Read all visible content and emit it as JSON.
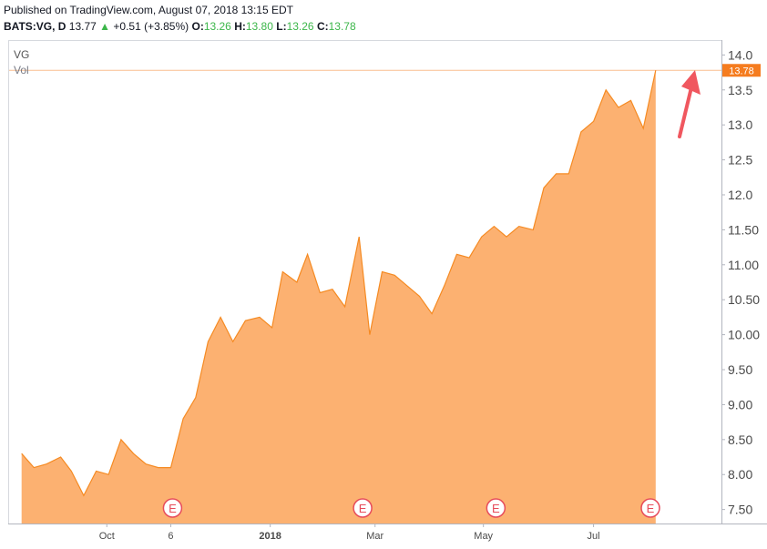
{
  "header": {
    "published": "Published on TradingView.com, August 07, 2018 13:15 EDT",
    "symbol": "BATS:VG, D",
    "last": "13.77",
    "change": "+0.51 (+3.85%)",
    "o_label": "O:",
    "o_value": "13.26",
    "h_label": "H:",
    "h_value": "13.80",
    "l_label": "L:",
    "l_value": "13.26",
    "c_label": "C:",
    "c_value": "13.78",
    "up_arrow": "▲"
  },
  "legend": {
    "symbol": "VG",
    "volume": "Vol"
  },
  "colors": {
    "area_fill": "#fca862",
    "line": "#f58a22",
    "price_tag": "#f57c1f",
    "arrow": "#f0575f",
    "earnings": "#e74c5b"
  },
  "chart_data": {
    "type": "area",
    "title": "",
    "xlabel": "",
    "ylabel": "",
    "ylim": [
      7.3,
      14.2
    ],
    "x_ticks": [
      {
        "label": "Oct",
        "date": "2017-10-01",
        "bold": false
      },
      {
        "label": "6",
        "date": "2017-11-06",
        "bold": false
      },
      {
        "label": "2018",
        "date": "2018-01-01",
        "bold": true
      },
      {
        "label": "Mar",
        "date": "2018-03-01",
        "bold": false
      },
      {
        "label": "May",
        "date": "2018-05-01",
        "bold": false
      },
      {
        "label": "Jul",
        "date": "2018-07-02",
        "bold": false
      }
    ],
    "y_ticks": [
      {
        "label": "14.0",
        "value": 14.0
      },
      {
        "label": "13.5",
        "value": 13.5
      },
      {
        "label": "13.0",
        "value": 13.0
      },
      {
        "label": "12.5",
        "value": 12.5
      },
      {
        "label": "12.0",
        "value": 12.0
      },
      {
        "label": "11.50",
        "value": 11.5
      },
      {
        "label": "11.00",
        "value": 11.0
      },
      {
        "label": "10.50",
        "value": 10.5
      },
      {
        "label": "10.00",
        "value": 10.0
      },
      {
        "label": "9.50",
        "value": 9.5
      },
      {
        "label": "9.00",
        "value": 9.0
      },
      {
        "label": "8.50",
        "value": 8.5
      },
      {
        "label": "8.00",
        "value": 8.0
      },
      {
        "label": "7.50",
        "value": 7.5
      }
    ],
    "last_price": {
      "label": "13.78",
      "value": 13.78
    },
    "earnings_markers": [
      {
        "label": "E",
        "date": "2017-11-07"
      },
      {
        "label": "E",
        "date": "2018-02-22"
      },
      {
        "label": "E",
        "date": "2018-05-08"
      },
      {
        "label": "E",
        "date": "2018-08-03"
      }
    ],
    "series": [
      {
        "x": [
          "2017-08-14",
          "2017-08-21",
          "2017-08-28",
          "2017-09-05",
          "2017-09-11",
          "2017-09-18",
          "2017-09-25",
          "2017-10-02",
          "2017-10-09",
          "2017-10-16",
          "2017-10-23",
          "2017-10-30",
          "2017-11-06",
          "2017-11-13",
          "2017-11-20",
          "2017-11-27",
          "2017-12-04",
          "2017-12-11",
          "2017-12-18",
          "2017-12-26",
          "2018-01-02",
          "2018-01-08",
          "2018-01-16",
          "2018-01-22",
          "2018-01-29",
          "2018-02-05",
          "2018-02-12",
          "2018-02-20",
          "2018-02-26",
          "2018-03-05",
          "2018-03-12",
          "2018-03-19",
          "2018-03-26",
          "2018-04-02",
          "2018-04-09",
          "2018-04-16",
          "2018-04-23",
          "2018-04-30",
          "2018-05-07",
          "2018-05-14",
          "2018-05-21",
          "2018-05-29",
          "2018-06-04",
          "2018-06-11",
          "2018-06-18",
          "2018-06-25",
          "2018-07-02",
          "2018-07-09",
          "2018-07-16",
          "2018-07-23",
          "2018-07-30",
          "2018-08-06"
        ],
        "values": [
          8.3,
          8.1,
          8.15,
          8.25,
          8.05,
          7.7,
          8.05,
          8.0,
          8.5,
          8.3,
          8.15,
          8.1,
          8.1,
          8.8,
          9.1,
          9.9,
          10.25,
          9.9,
          10.2,
          10.25,
          10.1,
          10.9,
          10.75,
          11.15,
          10.6,
          10.65,
          10.4,
          11.4,
          10.0,
          10.9,
          10.85,
          10.7,
          10.55,
          10.3,
          10.7,
          11.15,
          11.1,
          11.4,
          11.55,
          11.4,
          11.55,
          11.5,
          12.1,
          12.3,
          12.3,
          12.9,
          13.05,
          13.5,
          13.25,
          13.35,
          12.95,
          13.78
        ]
      }
    ]
  }
}
